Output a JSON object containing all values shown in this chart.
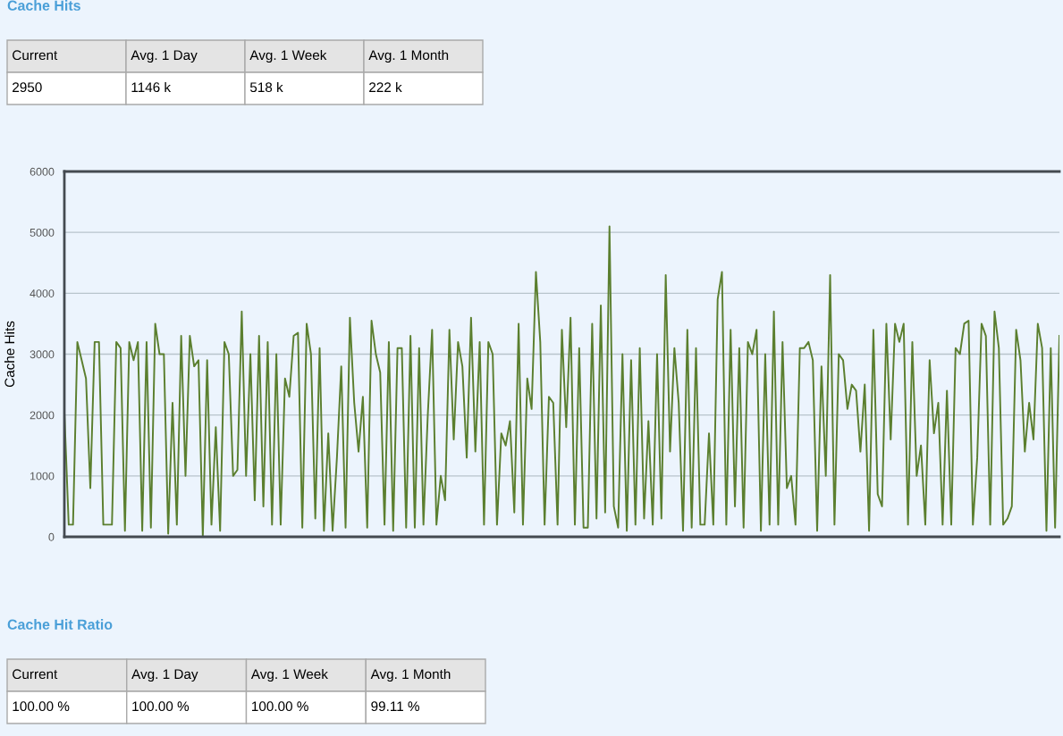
{
  "chart_data": [
    {
      "type": "other",
      "title": "Cache Hits",
      "annotations": [
        "Current",
        "Avg. 1 Day",
        "Avg. 1 Week",
        "Avg. 1 Month",
        "2950",
        "1146 k",
        "518 k",
        "222 k"
      ]
    },
    {
      "type": "line",
      "ylabel": "Cache Hits",
      "ylim": [
        0,
        6000
      ],
      "yticks": [
        0,
        1000,
        2000,
        3000,
        4000,
        5000,
        6000
      ],
      "grid": "y",
      "marker": "none",
      "line_style": "solid",
      "series": [
        {
          "color": "#5b7f2f",
          "values": [
            2050,
            200,
            200,
            3200,
            2900,
            2600,
            800,
            3200,
            3200,
            200,
            200,
            200,
            3200,
            3100,
            100,
            3200,
            2900,
            3200,
            100,
            3200,
            150,
            3500,
            3000,
            3000,
            50,
            2200,
            200,
            3300,
            1000,
            3300,
            2800,
            2900,
            0,
            2900,
            200,
            1800,
            100,
            3200,
            3000,
            1000,
            1100,
            3700,
            1000,
            3000,
            600,
            3300,
            500,
            3200,
            200,
            3000,
            200,
            2600,
            2300,
            3300,
            3350,
            150,
            3500,
            3000,
            300,
            3100,
            100,
            1700,
            100,
            1300,
            2800,
            150,
            3600,
            2200,
            1400,
            2300,
            150,
            3550,
            3000,
            2700,
            200,
            3200,
            100,
            3100,
            3100,
            150,
            3300,
            150,
            3100,
            200,
            2000,
            3400,
            200,
            1000,
            600,
            3400,
            1600,
            3200,
            2800,
            1300,
            3600,
            1400,
            3200,
            200,
            3200,
            3000,
            200,
            1700,
            1500,
            1900,
            400,
            3500,
            200,
            2600,
            2100,
            4350,
            3200,
            200,
            2300,
            2200,
            200,
            3400,
            1800,
            3600,
            200,
            3100,
            150,
            150,
            3500,
            300,
            3800,
            400,
            5100,
            500,
            150,
            3000,
            100,
            2900,
            200,
            3100,
            300,
            1900,
            200,
            3000,
            300,
            4300,
            1400,
            3100,
            2200,
            100,
            3400,
            150,
            3100,
            200,
            200,
            1700,
            200,
            3900,
            4350,
            200,
            3400,
            500,
            3100,
            150,
            3200,
            3000,
            3400,
            100,
            3000,
            200,
            3700,
            200,
            3200,
            800,
            1000,
            200,
            3100,
            3100,
            3200,
            2900,
            100,
            2800,
            1000,
            4300,
            200,
            3000,
            2900,
            2100,
            2500,
            2400,
            1400,
            2500,
            100,
            3400,
            700,
            500,
            3500,
            1600,
            3500,
            3200,
            3500,
            200,
            3200,
            1000,
            1500,
            200,
            2900,
            1700,
            2200,
            200,
            2400,
            200,
            3100,
            3000,
            3500,
            3550,
            200,
            1300,
            3500,
            3300,
            200,
            3700,
            3100,
            200,
            300,
            500,
            3400,
            2900,
            1400,
            2200,
            1600,
            3500,
            3100,
            100,
            3100,
            150,
            3300
          ]
        }
      ]
    },
    {
      "type": "other",
      "title": "Cache Hit Ratio",
      "annotations": [
        "Current",
        "Avg. 1 Day",
        "Avg. 1 Week",
        "Avg. 1 Month",
        "100.00 %",
        "100.00 %",
        "100.00 %",
        "99.11 %"
      ]
    }
  ]
}
